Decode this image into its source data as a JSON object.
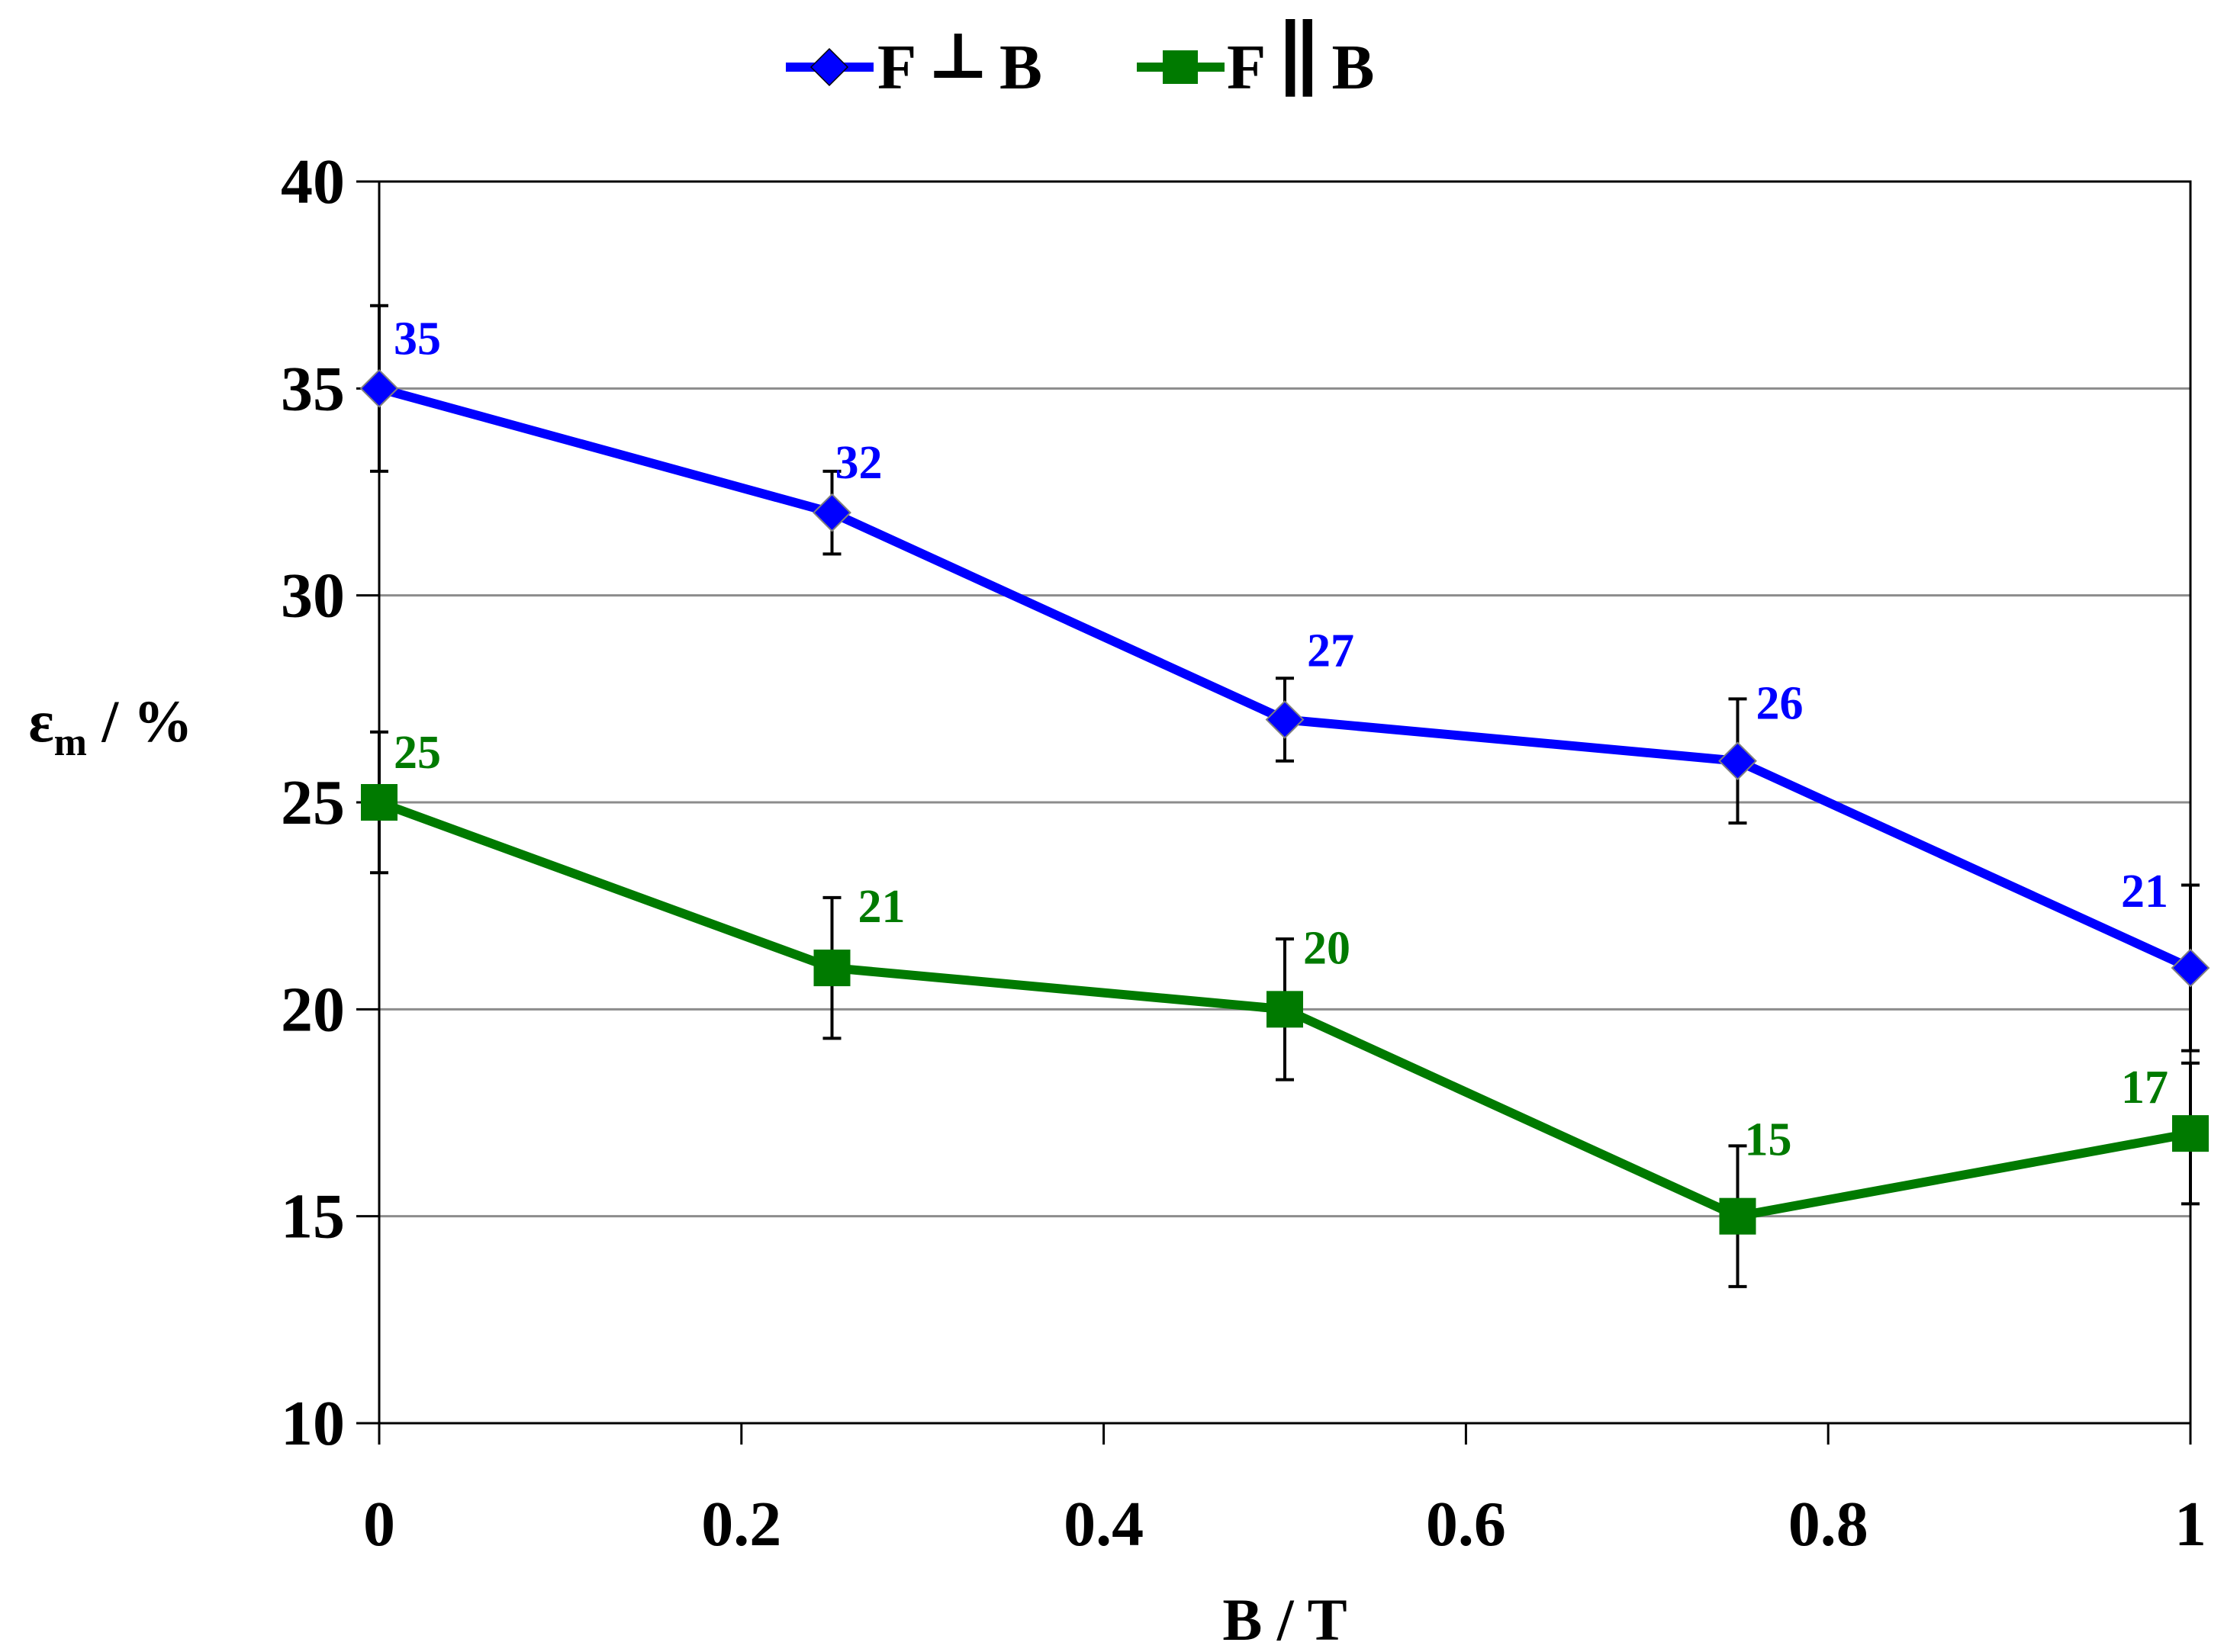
{
  "chart_data": {
    "type": "line",
    "title": "",
    "xlabel": "B / T",
    "ylabel": "εm / %",
    "ylabel_main": "ε",
    "ylabel_sub": "m",
    "ylabel_rest": " / %",
    "xlim": [
      0,
      1
    ],
    "ylim": [
      10,
      40
    ],
    "x_ticks": [
      0,
      0.2,
      0.4,
      0.6,
      0.8,
      1
    ],
    "x_tick_labels": [
      "0",
      "0.2",
      "0.4",
      "0.6",
      "0.8",
      "1"
    ],
    "y_ticks": [
      10,
      15,
      20,
      25,
      30,
      35,
      40
    ],
    "y_tick_labels": [
      "10",
      "15",
      "20",
      "25",
      "30",
      "35",
      "40"
    ],
    "grid": "horizontal",
    "legend_position": "top-center",
    "series": [
      {
        "name": "F ⊥ B",
        "legend_f": "F",
        "legend_sym": "⊥",
        "legend_b": "B",
        "color": "#0000ff",
        "marker": "diamond",
        "x": [
          0,
          0.25,
          0.5,
          0.75,
          1
        ],
        "values": [
          35,
          32,
          27,
          26,
          21
        ],
        "errors": [
          2,
          1,
          1,
          1.5,
          2
        ],
        "labels": [
          "35",
          "32",
          "27",
          "26",
          "21"
        ]
      },
      {
        "name": "F ∥ B",
        "legend_f": "F",
        "legend_sym": "∥",
        "legend_b": "B",
        "color": "#007a00",
        "marker": "square",
        "x": [
          0,
          0.25,
          0.5,
          0.75,
          1
        ],
        "values": [
          25,
          21,
          20,
          15,
          17
        ],
        "errors": [
          1.7,
          1.7,
          1.7,
          1.7,
          1.7
        ],
        "labels": [
          "25",
          "21",
          "20",
          "15",
          "17"
        ]
      }
    ]
  }
}
